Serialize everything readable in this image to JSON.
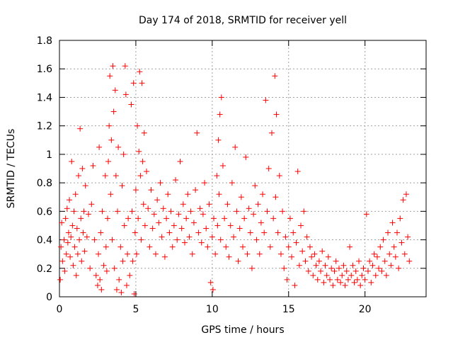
{
  "chart_data": {
    "type": "scatter",
    "title": "Day 174 of 2018, SRMTID for receiver yell",
    "xlabel": "GPS time / hours",
    "ylabel": "SRMTID / TECUs",
    "xlim": [
      0,
      24
    ],
    "ylim": [
      0,
      1.8
    ],
    "xticks": [
      0,
      5,
      10,
      15,
      20
    ],
    "yticks": [
      0,
      0.2,
      0.4,
      0.6,
      0.8,
      1,
      1.2,
      1.4,
      1.6,
      1.8
    ],
    "grid": true,
    "marker": "+",
    "color": "#ff0000",
    "series": [
      {
        "name": "SRMTID",
        "points": [
          [
            0.05,
            0.12
          ],
          [
            0.1,
            0.35
          ],
          [
            0.15,
            0.52
          ],
          [
            0.2,
            0.25
          ],
          [
            0.3,
            0.4
          ],
          [
            0.35,
            0.18
          ],
          [
            0.4,
            0.55
          ],
          [
            0.45,
            0.3
          ],
          [
            0.5,
            0.62
          ],
          [
            0.55,
            0.38
          ],
          [
            0.6,
            0.45
          ],
          [
            0.65,
            0.68
          ],
          [
            0.7,
            0.28
          ],
          [
            0.75,
            0.42
          ],
          [
            0.8,
            0.95
          ],
          [
            0.85,
            0.5
          ],
          [
            0.9,
            0.22
          ],
          [
            0.95,
            0.6
          ],
          [
            1.0,
            0.35
          ],
          [
            1.05,
            0.72
          ],
          [
            1.1,
            0.15
          ],
          [
            1.15,
            0.48
          ],
          [
            1.2,
            0.3
          ],
          [
            1.25,
            0.85
          ],
          [
            1.3,
            0.4
          ],
          [
            1.35,
            1.18
          ],
          [
            1.4,
            0.55
          ],
          [
            1.45,
            0.25
          ],
          [
            1.5,
            0.9
          ],
          [
            1.55,
            0.45
          ],
          [
            1.6,
            0.6
          ],
          [
            1.65,
            0.32
          ],
          [
            1.7,
            0.78
          ],
          [
            1.8,
            0.42
          ],
          [
            1.9,
            0.58
          ],
          [
            2.0,
            0.2
          ],
          [
            2.1,
            0.65
          ],
          [
            2.2,
            0.92
          ],
          [
            2.3,
            0.4
          ],
          [
            2.4,
            0.15
          ],
          [
            2.5,
            0.08
          ],
          [
            2.55,
            0.3
          ],
          [
            2.6,
            1.05
          ],
          [
            2.65,
            0.12
          ],
          [
            2.7,
            0.45
          ],
          [
            2.75,
            0.05
          ],
          [
            2.8,
            0.6
          ],
          [
            2.9,
            0.22
          ],
          [
            3.0,
            0.85
          ],
          [
            3.05,
            0.35
          ],
          [
            3.1,
            0.18
          ],
          [
            3.15,
            0.55
          ],
          [
            3.2,
            0.95
          ],
          [
            3.25,
            1.2
          ],
          [
            3.3,
            1.55
          ],
          [
            3.35,
            0.72
          ],
          [
            3.4,
            1.1
          ],
          [
            3.45,
            0.4
          ],
          [
            3.5,
            1.62
          ],
          [
            3.55,
            1.3
          ],
          [
            3.6,
            0.2
          ],
          [
            3.65,
            1.45
          ],
          [
            3.7,
            0.85
          ],
          [
            3.75,
            0.05
          ],
          [
            3.8,
            0.6
          ],
          [
            3.85,
            1.05
          ],
          [
            3.9,
            0.12
          ],
          [
            4.0,
            0.35
          ],
          [
            4.05,
            0.03
          ],
          [
            4.1,
            0.78
          ],
          [
            4.15,
            0.25
          ],
          [
            4.2,
            1.0
          ],
          [
            4.25,
            0.5
          ],
          [
            4.3,
            1.62
          ],
          [
            4.35,
            1.42
          ],
          [
            4.4,
            0.08
          ],
          [
            4.45,
            0.3
          ],
          [
            4.5,
            0.55
          ],
          [
            4.6,
            0.15
          ],
          [
            4.7,
            1.35
          ],
          [
            4.75,
            0.6
          ],
          [
            4.8,
            0.25
          ],
          [
            4.85,
            1.5
          ],
          [
            4.9,
            0.02
          ],
          [
            4.95,
            0.45
          ],
          [
            5.0,
            0.75
          ],
          [
            5.05,
            0.3
          ],
          [
            5.1,
            1.2
          ],
          [
            5.15,
            0.55
          ],
          [
            5.2,
            1.02
          ],
          [
            5.25,
            1.58
          ],
          [
            5.3,
            0.85
          ],
          [
            5.35,
            0.4
          ],
          [
            5.4,
            1.5
          ],
          [
            5.45,
            0.95
          ],
          [
            5.5,
            0.65
          ],
          [
            5.55,
            1.15
          ],
          [
            5.6,
            0.5
          ],
          [
            5.7,
            0.88
          ],
          [
            5.8,
            0.62
          ],
          [
            5.9,
            0.35
          ],
          [
            6.0,
            0.75
          ],
          [
            6.1,
            0.48
          ],
          [
            6.2,
            0.58
          ],
          [
            6.3,
            0.3
          ],
          [
            6.4,
            0.68
          ],
          [
            6.5,
            0.52
          ],
          [
            6.6,
            0.8
          ],
          [
            6.7,
            0.42
          ],
          [
            6.8,
            0.62
          ],
          [
            6.9,
            0.28
          ],
          [
            7.0,
            0.55
          ],
          [
            7.1,
            0.72
          ],
          [
            7.2,
            0.45
          ],
          [
            7.3,
            0.6
          ],
          [
            7.4,
            0.35
          ],
          [
            7.5,
            0.5
          ],
          [
            7.6,
            0.82
          ],
          [
            7.7,
            0.4
          ],
          [
            7.8,
            0.58
          ],
          [
            7.9,
            0.95
          ],
          [
            8.0,
            0.48
          ],
          [
            8.1,
            0.65
          ],
          [
            8.2,
            0.38
          ],
          [
            8.3,
            0.55
          ],
          [
            8.4,
            0.72
          ],
          [
            8.5,
            0.42
          ],
          [
            8.6,
            0.6
          ],
          [
            8.7,
            0.3
          ],
          [
            8.8,
            0.52
          ],
          [
            8.9,
            0.75
          ],
          [
            9.0,
            1.15
          ],
          [
            9.1,
            0.45
          ],
          [
            9.2,
            0.62
          ],
          [
            9.3,
            0.38
          ],
          [
            9.4,
            0.58
          ],
          [
            9.5,
            0.8
          ],
          [
            9.6,
            0.48
          ],
          [
            9.7,
            0.35
          ],
          [
            9.8,
            0.65
          ],
          [
            9.9,
            0.1
          ],
          [
            10.0,
            0.42
          ],
          [
            10.05,
            0.05
          ],
          [
            10.1,
            0.55
          ],
          [
            10.2,
            0.3
          ],
          [
            10.3,
            0.85
          ],
          [
            10.35,
            0.5
          ],
          [
            10.4,
            1.1
          ],
          [
            10.45,
            0.72
          ],
          [
            10.5,
            1.28
          ],
          [
            10.55,
            0.4
          ],
          [
            10.6,
            1.4
          ],
          [
            10.7,
            0.92
          ],
          [
            10.8,
            0.55
          ],
          [
            10.9,
            0.35
          ],
          [
            11.0,
            0.65
          ],
          [
            11.1,
            0.28
          ],
          [
            11.2,
            0.5
          ],
          [
            11.3,
            0.8
          ],
          [
            11.4,
            0.42
          ],
          [
            11.5,
            1.05
          ],
          [
            11.6,
            0.6
          ],
          [
            11.7,
            0.25
          ],
          [
            11.8,
            0.48
          ],
          [
            11.9,
            0.7
          ],
          [
            12.0,
            0.35
          ],
          [
            12.1,
            0.55
          ],
          [
            12.2,
            0.98
          ],
          [
            12.3,
            0.3
          ],
          [
            12.4,
            0.62
          ],
          [
            12.5,
            0.45
          ],
          [
            12.6,
            0.2
          ],
          [
            12.7,
            0.58
          ],
          [
            12.8,
            0.78
          ],
          [
            12.9,
            0.4
          ],
          [
            13.0,
            0.65
          ],
          [
            13.1,
            0.3
          ],
          [
            13.2,
            0.52
          ],
          [
            13.3,
            0.72
          ],
          [
            13.4,
            0.45
          ],
          [
            13.5,
            1.38
          ],
          [
            13.6,
            0.6
          ],
          [
            13.7,
            0.9
          ],
          [
            13.8,
            0.35
          ],
          [
            13.9,
            1.15
          ],
          [
            14.0,
            0.55
          ],
          [
            14.1,
            1.55
          ],
          [
            14.15,
            0.7
          ],
          [
            14.2,
            1.28
          ],
          [
            14.3,
            0.45
          ],
          [
            14.4,
            0.85
          ],
          [
            14.5,
            0.3
          ],
          [
            14.6,
            0.6
          ],
          [
            14.7,
            0.2
          ],
          [
            14.8,
            0.42
          ],
          [
            14.9,
            0.12
          ],
          [
            15.0,
            0.35
          ],
          [
            15.1,
            0.55
          ],
          [
            15.2,
            0.28
          ],
          [
            15.3,
            0.45
          ],
          [
            15.4,
            0.08
          ],
          [
            15.5,
            0.38
          ],
          [
            15.6,
            0.88
          ],
          [
            15.7,
            0.22
          ],
          [
            15.8,
            0.5
          ],
          [
            15.9,
            0.32
          ],
          [
            16.0,
            0.6
          ],
          [
            16.1,
            0.25
          ],
          [
            16.2,
            0.42
          ],
          [
            16.3,
            0.18
          ],
          [
            16.4,
            0.35
          ],
          [
            16.5,
            0.28
          ],
          [
            16.6,
            0.15
          ],
          [
            16.7,
            0.3
          ],
          [
            16.8,
            0.22
          ],
          [
            16.9,
            0.12
          ],
          [
            17.0,
            0.25
          ],
          [
            17.1,
            0.18
          ],
          [
            17.2,
            0.32
          ],
          [
            17.3,
            0.1
          ],
          [
            17.4,
            0.22
          ],
          [
            17.5,
            0.15
          ],
          [
            17.6,
            0.28
          ],
          [
            17.7,
            0.12
          ],
          [
            17.8,
            0.2
          ],
          [
            17.9,
            0.08
          ],
          [
            18.0,
            0.18
          ],
          [
            18.1,
            0.25
          ],
          [
            18.2,
            0.12
          ],
          [
            18.3,
            0.2
          ],
          [
            18.4,
            0.1
          ],
          [
            18.5,
            0.15
          ],
          [
            18.6,
            0.22
          ],
          [
            18.7,
            0.08
          ],
          [
            18.8,
            0.18
          ],
          [
            18.9,
            0.12
          ],
          [
            19.0,
            0.35
          ],
          [
            19.1,
            0.15
          ],
          [
            19.2,
            0.22
          ],
          [
            19.3,
            0.1
          ],
          [
            19.4,
            0.18
          ],
          [
            19.5,
            0.12
          ],
          [
            19.6,
            0.25
          ],
          [
            19.7,
            0.08
          ],
          [
            19.8,
            0.15
          ],
          [
            19.9,
            0.2
          ],
          [
            20.0,
            0.12
          ],
          [
            20.1,
            0.58
          ],
          [
            20.2,
            0.18
          ],
          [
            20.3,
            0.25
          ],
          [
            20.4,
            0.1
          ],
          [
            20.5,
            0.22
          ],
          [
            20.6,
            0.3
          ],
          [
            20.7,
            0.15
          ],
          [
            20.8,
            0.28
          ],
          [
            20.9,
            0.2
          ],
          [
            21.0,
            0.35
          ],
          [
            21.1,
            0.18
          ],
          [
            21.2,
            0.4
          ],
          [
            21.3,
            0.25
          ],
          [
            21.4,
            0.15
          ],
          [
            21.5,
            0.45
          ],
          [
            21.6,
            0.3
          ],
          [
            21.7,
            0.22
          ],
          [
            21.8,
            0.52
          ],
          [
            21.9,
            0.35
          ],
          [
            22.0,
            0.28
          ],
          [
            22.1,
            0.45
          ],
          [
            22.2,
            0.2
          ],
          [
            22.3,
            0.55
          ],
          [
            22.4,
            0.38
          ],
          [
            22.5,
            0.68
          ],
          [
            22.6,
            0.3
          ],
          [
            22.7,
            0.72
          ],
          [
            22.8,
            0.42
          ],
          [
            22.9,
            0.25
          ]
        ]
      }
    ]
  }
}
